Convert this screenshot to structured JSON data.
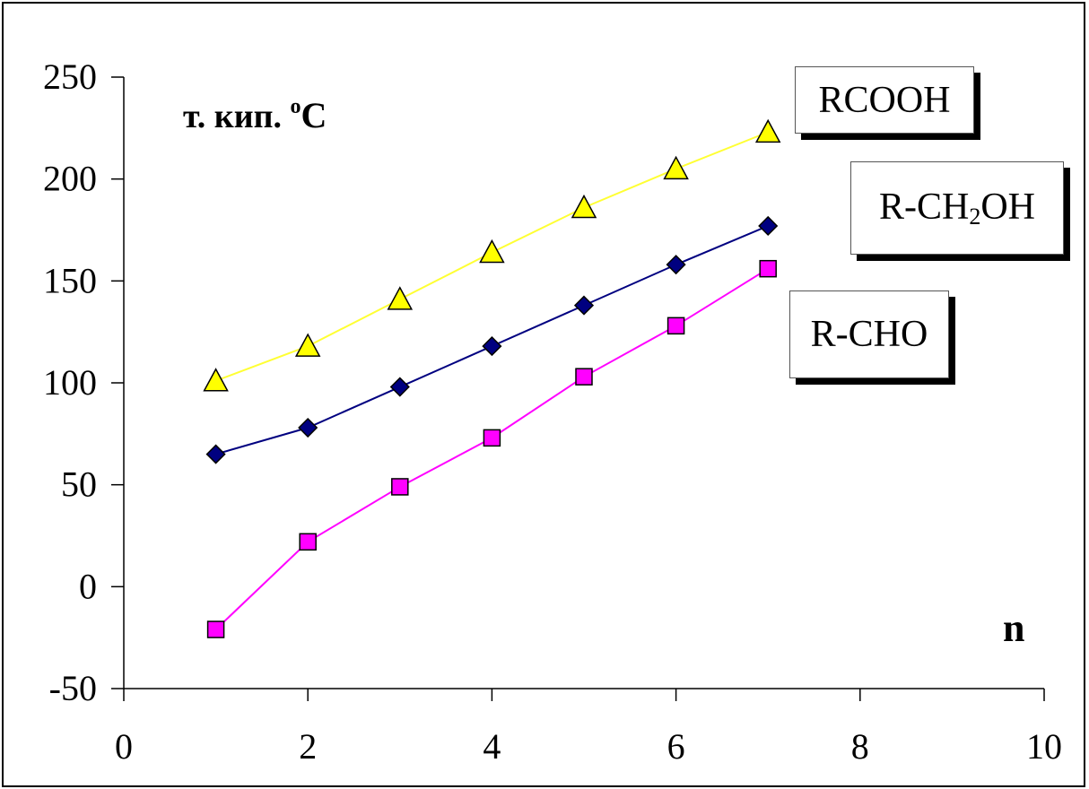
{
  "chart_data": {
    "type": "line",
    "ylabel_main": "т. кип. ",
    "ylabel_sup": "о",
    "ylabel_unit": "C",
    "xlabel": "n",
    "xlim": [
      0,
      10
    ],
    "ylim": [
      -50,
      250
    ],
    "x_ticks": [
      "0",
      "2",
      "4",
      "6",
      "8",
      "10"
    ],
    "y_ticks": [
      "250",
      "200",
      "150",
      "100",
      "50",
      "0",
      "-50"
    ],
    "grid": false,
    "x": [
      1,
      2,
      3,
      4,
      5,
      6,
      7
    ],
    "series": [
      {
        "name": "RCOOH",
        "name_main": "RCOOH",
        "name_sub": "",
        "name_tail": "",
        "color": "#ffff00",
        "line_color": "#ffff33",
        "marker": "triangle",
        "values": [
          101,
          118,
          141,
          164,
          186,
          205,
          223
        ]
      },
      {
        "name": "R-CH2OH",
        "name_main": "R-CH",
        "name_sub": "2",
        "name_tail": "OH",
        "color": "#000080",
        "line_color": "#000080",
        "marker": "diamond",
        "values": [
          65,
          78,
          98,
          118,
          138,
          158,
          177
        ]
      },
      {
        "name": "R-CHO",
        "name_main": "R-CHO",
        "name_sub": "",
        "name_tail": "",
        "color": "#ff00ff",
        "line_color": "#ff00ff",
        "marker": "square",
        "values": [
          -21,
          22,
          49,
          73,
          103,
          128,
          156
        ]
      }
    ]
  }
}
